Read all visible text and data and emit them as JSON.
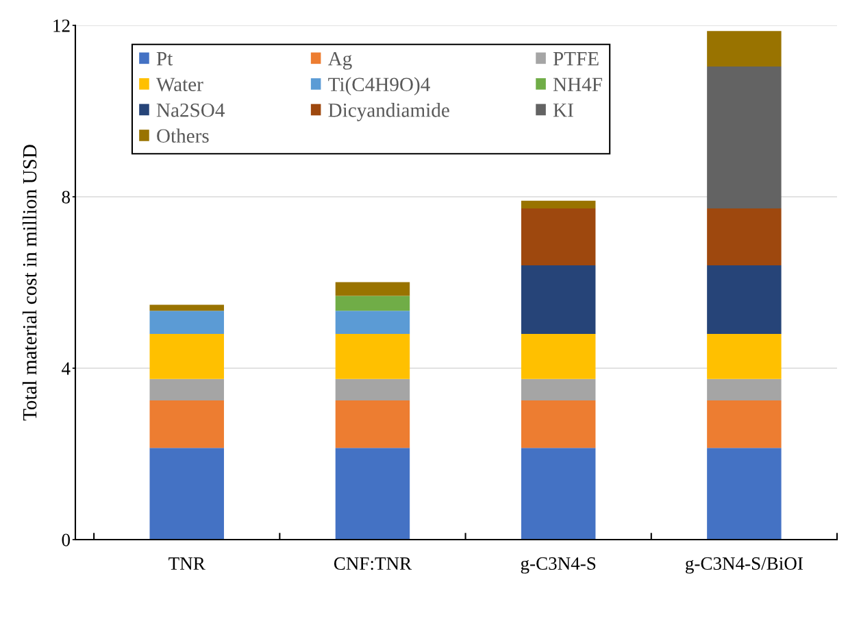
{
  "chart_data": {
    "type": "bar",
    "stacked": true,
    "ylabel": "Total material cost in million USD",
    "categories": [
      "TNR",
      "CNF:TNR",
      "g-C3N4-S",
      "g-C3N4-S/BiOI"
    ],
    "ylim": [
      0,
      12
    ],
    "yticks": [
      0,
      4,
      8,
      12
    ],
    "grid": "y",
    "legend": "top left",
    "series": [
      {
        "name": "Pt",
        "color": "#4472c4",
        "values": [
          2.14,
          2.14,
          2.14,
          2.14
        ]
      },
      {
        "name": "Ag",
        "color": "#ed7d31",
        "values": [
          1.11,
          1.11,
          1.11,
          1.11
        ]
      },
      {
        "name": "PTFE",
        "color": "#a5a5a5",
        "values": [
          0.5,
          0.5,
          0.5,
          0.5
        ]
      },
      {
        "name": "Water",
        "color": "#ffc000",
        "values": [
          1.05,
          1.05,
          1.05,
          1.05
        ]
      },
      {
        "name": "Ti(C4H9O)4",
        "color": "#5b9bd5",
        "values": [
          0.54,
          0.54,
          null,
          null
        ]
      },
      {
        "name": "NH4F",
        "color": "#70ad47",
        "values": [
          null,
          0.35,
          null,
          null
        ]
      },
      {
        "name": "Na2SO4",
        "color": "#264478",
        "values": [
          null,
          null,
          1.6,
          1.6
        ]
      },
      {
        "name": "Dicyandiamide",
        "color": "#9e480e",
        "values": [
          null,
          null,
          1.33,
          1.33
        ]
      },
      {
        "name": "KI",
        "color": "#636363",
        "values": [
          null,
          null,
          null,
          3.31
        ]
      },
      {
        "name": "Others",
        "color": "#997300",
        "values": [
          0.14,
          0.32,
          0.18,
          0.83
        ]
      }
    ]
  }
}
